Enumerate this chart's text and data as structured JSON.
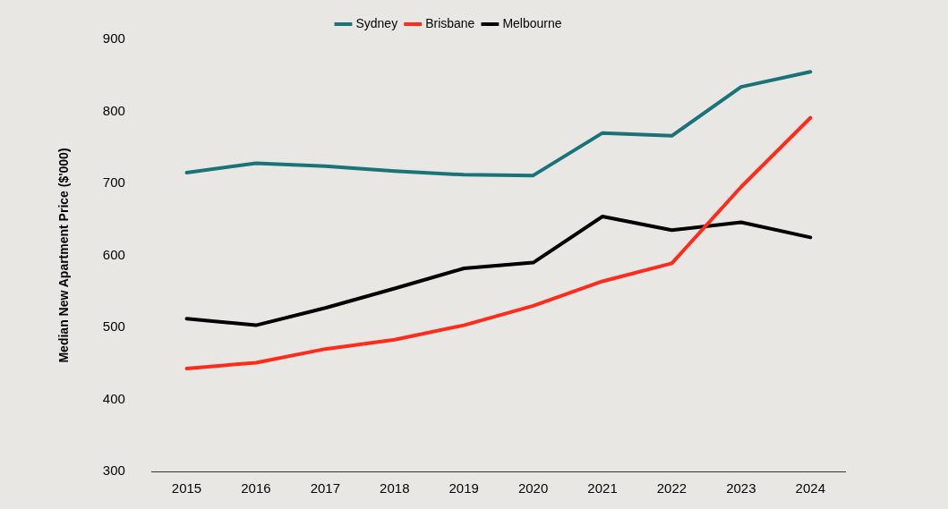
{
  "chart_data": {
    "type": "line",
    "ylabel": "Median New Apartment Price ($'000)",
    "categories": [
      "2015",
      "2016",
      "2017",
      "2018",
      "2019",
      "2020",
      "2021",
      "2022",
      "2023",
      "2024"
    ],
    "series": [
      {
        "name": "Sydney",
        "color": "#1b737a",
        "values": [
          715,
          728,
          724,
          717,
          712,
          711,
          770,
          766,
          834,
          855
        ]
      },
      {
        "name": "Brisbane",
        "color": "#ff2a1a",
        "values": [
          443,
          451,
          470,
          483,
          503,
          530,
          564,
          589,
          695,
          791
        ]
      },
      {
        "name": "Melbourne",
        "color": "#000000",
        "values": [
          512,
          503,
          527,
          554,
          582,
          590,
          654,
          635,
          646,
          625
        ]
      }
    ],
    "ylim": [
      300,
      900
    ],
    "yticks": [
      300,
      400,
      500,
      600,
      700,
      800,
      900
    ],
    "grid": false,
    "legend": "top",
    "marker": "none",
    "line_style": "solid"
  }
}
